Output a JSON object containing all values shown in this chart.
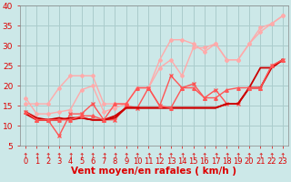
{
  "background_color": "#cce8e8",
  "grid_color": "#aacccc",
  "xlabel": "Vent moyen/en rafales ( km/h )",
  "xlim": [
    -0.5,
    23.5
  ],
  "ylim": [
    5,
    40
  ],
  "yticks": [
    5,
    10,
    15,
    20,
    25,
    30,
    35,
    40
  ],
  "xticks": [
    0,
    1,
    2,
    3,
    4,
    5,
    6,
    7,
    8,
    9,
    10,
    11,
    12,
    13,
    14,
    15,
    16,
    17,
    18,
    19,
    20,
    21,
    22,
    23
  ],
  "series": [
    {
      "x": [
        0,
        1,
        2,
        3,
        4,
        5,
        6,
        7,
        8,
        9,
        10,
        11,
        12,
        13,
        14,
        15,
        16,
        17,
        18,
        19,
        20,
        21,
        22,
        23
      ],
      "y": [
        15.5,
        15.5,
        15.5,
        19.5,
        22.5,
        22.5,
        22.5,
        15.5,
        15.5,
        15.5,
        19.5,
        19.5,
        26.5,
        31.5,
        31.5,
        30.5,
        28.5,
        30.5,
        26.5,
        26.5,
        30.5,
        34.5,
        35.5,
        37.5
      ],
      "color": "#ffaaaa",
      "lw": 1.0,
      "marker": "D",
      "markersize": 2.0
    },
    {
      "x": [
        0,
        1,
        2,
        3,
        4,
        5,
        6,
        7,
        8,
        9,
        10,
        11,
        12,
        13,
        14,
        15,
        16,
        17,
        18,
        19,
        20,
        21,
        22,
        23
      ],
      "y": [
        17.0,
        13.0,
        13.0,
        13.5,
        14.0,
        19.0,
        20.0,
        13.5,
        14.5,
        15.5,
        19.5,
        19.5,
        24.5,
        26.5,
        22.5,
        29.5,
        29.5,
        30.5,
        26.5,
        26.5,
        30.5,
        33.5,
        35.5,
        37.5
      ],
      "color": "#ffaaaa",
      "lw": 1.0,
      "marker": "D",
      "markersize": 2.0
    },
    {
      "x": [
        0,
        1,
        2,
        3,
        4,
        5,
        6,
        7,
        8,
        9,
        10,
        11,
        12,
        13,
        14,
        15,
        16,
        17,
        18,
        19,
        20,
        21,
        22,
        23
      ],
      "y": [
        13.5,
        11.5,
        11.5,
        7.5,
        13.0,
        13.0,
        15.5,
        11.5,
        11.5,
        15.0,
        14.5,
        19.5,
        15.0,
        22.5,
        19.5,
        20.5,
        17.0,
        19.0,
        15.5,
        15.5,
        19.5,
        19.5,
        25.0,
        26.5
      ],
      "color": "#ff5555",
      "lw": 1.0,
      "marker": "x",
      "markersize": 3.0
    },
    {
      "x": [
        0,
        1,
        2,
        3,
        4,
        5,
        6,
        7,
        8,
        9,
        10,
        11,
        12,
        13,
        14,
        15,
        16,
        17,
        18,
        19,
        20,
        21,
        22,
        23
      ],
      "y": [
        13.5,
        12.0,
        11.5,
        12.0,
        11.5,
        12.0,
        11.5,
        11.5,
        12.5,
        14.5,
        14.5,
        14.5,
        14.5,
        14.5,
        14.5,
        14.5,
        14.5,
        14.5,
        15.5,
        15.5,
        19.5,
        19.5,
        24.5,
        26.5
      ],
      "color": "#cc0000",
      "lw": 1.3,
      "marker": null,
      "markersize": 0
    },
    {
      "x": [
        0,
        1,
        2,
        3,
        4,
        5,
        6,
        7,
        8,
        9,
        10,
        11,
        12,
        13,
        14,
        15,
        16,
        17,
        18,
        19,
        20,
        21,
        22,
        23
      ],
      "y": [
        13.0,
        11.5,
        11.5,
        11.5,
        12.0,
        12.0,
        11.5,
        11.5,
        12.0,
        14.5,
        14.5,
        14.5,
        14.5,
        14.5,
        14.5,
        14.5,
        14.5,
        14.5,
        15.5,
        15.5,
        19.5,
        24.5,
        24.5,
        26.5
      ],
      "color": "#cc0000",
      "lw": 1.3,
      "marker": null,
      "markersize": 0
    },
    {
      "x": [
        0,
        1,
        2,
        3,
        4,
        5,
        6,
        7,
        8,
        9,
        10,
        11,
        12,
        13,
        14,
        15,
        16,
        17,
        18,
        19,
        20,
        21,
        22,
        23
      ],
      "y": [
        13.5,
        11.5,
        11.5,
        11.5,
        11.5,
        12.5,
        12.5,
        11.5,
        15.5,
        15.5,
        19.5,
        19.5,
        15.0,
        14.5,
        19.5,
        19.5,
        17.0,
        17.0,
        19.0,
        19.5,
        19.5,
        19.5,
        25.0,
        26.5
      ],
      "color": "#ff5555",
      "lw": 1.0,
      "marker": "^",
      "markersize": 2.5
    }
  ],
  "arrow_color": "#dd0000",
  "xlabel_color": "#dd0000",
  "xlabel_fontsize": 7.5,
  "tick_color": "#dd0000",
  "tick_fontsize": 6.0,
  "ytick_fontsize": 6.5
}
